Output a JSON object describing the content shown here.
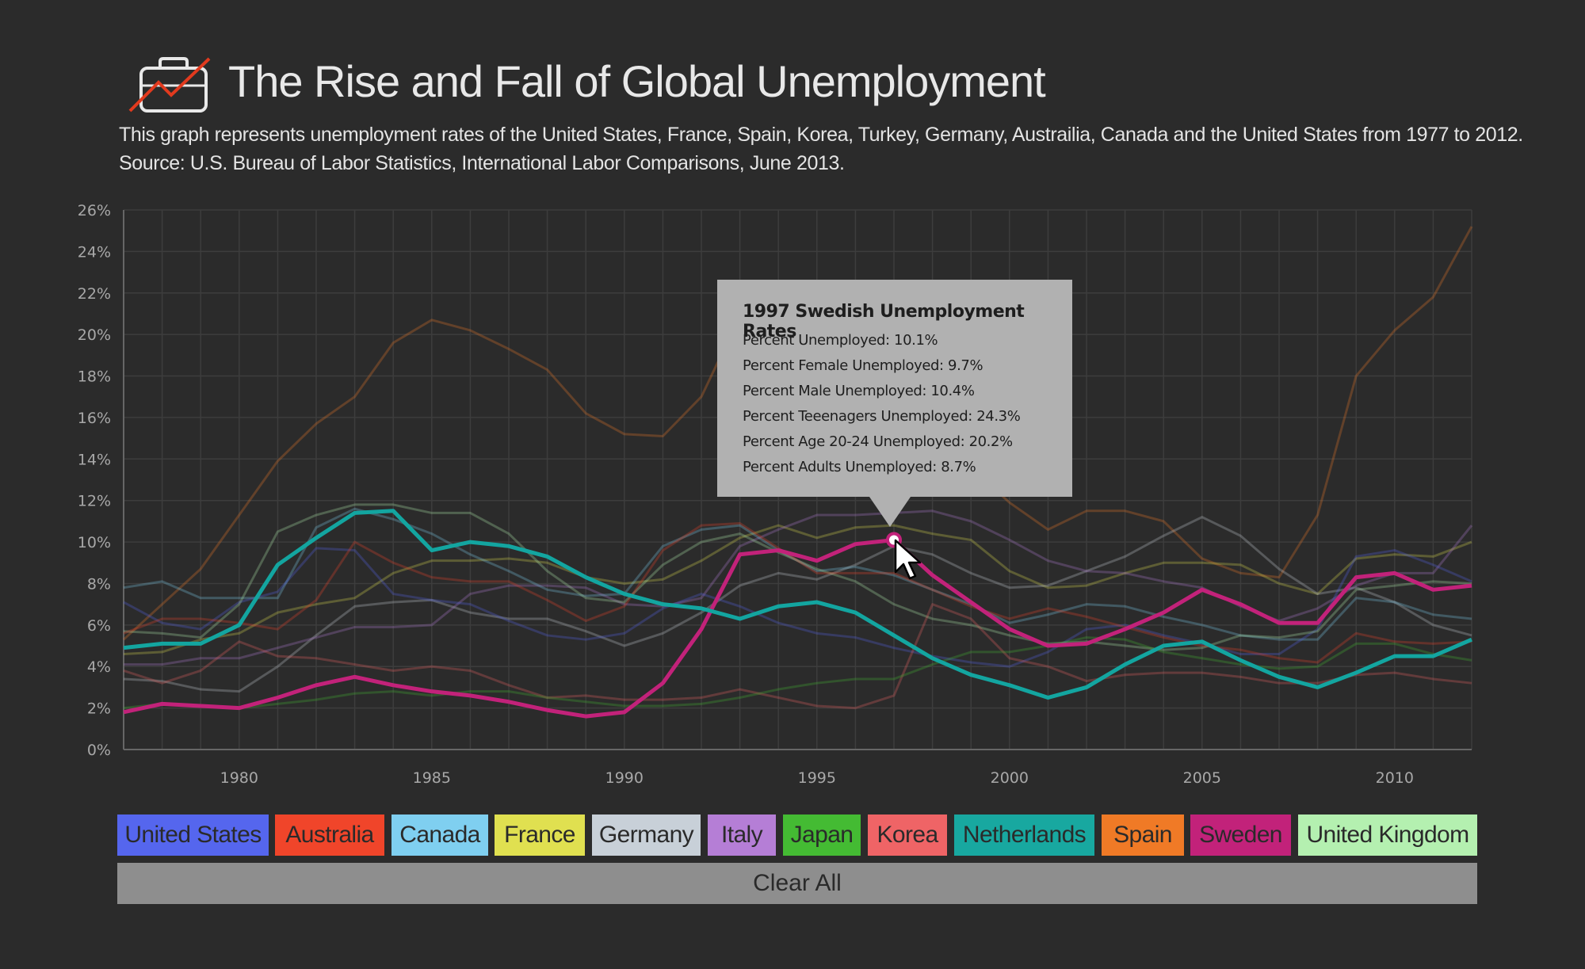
{
  "header": {
    "title": "The Rise and Fall of Global Unemployment",
    "subtitle_line1": "This graph represents unemployment rates of the United States, France, Spain, Korea, Turkey, Germany, Austrailia, Canada and the United States from 1977 to 2012.",
    "subtitle_line2": "Source: U.S. Bureau of Labor Statistics, International Labor Comparisons, June 2013.",
    "icon": "briefcase-chart-icon"
  },
  "tooltip": {
    "title": "1997 Swedish Unemployment Rates",
    "lines": [
      "Percent Unemployed: 10.1%",
      "Percent Female Unemployed: 9.7%",
      "Percent Male Unemployed: 10.4%",
      "Percent Teeenagers Unemployed: 24.3%",
      "Percent Age 20-24 Unemployed: 20.2%",
      "Percent Adults Unemployed: 8.7%"
    ]
  },
  "buttons": [
    {
      "label": "United States",
      "color": "#5566ee"
    },
    {
      "label": "Australia",
      "color": "#f0452a"
    },
    {
      "label": "Canada",
      "color": "#7fcff0"
    },
    {
      "label": "France",
      "color": "#e0e050"
    },
    {
      "label": "Germany",
      "color": "#c8d0d8"
    },
    {
      "label": "Italy",
      "color": "#b57ed6"
    },
    {
      "label": "Japan",
      "color": "#44bb33"
    },
    {
      "label": "Korea",
      "color": "#ef6466"
    },
    {
      "label": "Netherlands",
      "color": "#18a8a0"
    },
    {
      "label": "Spain",
      "color": "#f07a26"
    },
    {
      "label": "Sweden",
      "color": "#c2227a"
    },
    {
      "label": "United Kingdom",
      "color": "#b4f0b0"
    }
  ],
  "clear_label": "Clear All",
  "chart_data": {
    "type": "line",
    "title": "The Rise and Fall of Global Unemployment",
    "xlabel": "",
    "ylabel": "",
    "xlim": [
      1977,
      2012
    ],
    "ylim": [
      0,
      26
    ],
    "yticks": [
      "0%",
      "2%",
      "4%",
      "6%",
      "8%",
      "10%",
      "12%",
      "14%",
      "16%",
      "18%",
      "20%",
      "22%",
      "24%",
      "26%"
    ],
    "xticks": [
      "1980",
      "1985",
      "1990",
      "1995",
      "2000",
      "2005",
      "2010"
    ],
    "grid": true,
    "highlight_point": {
      "series": "Sweden",
      "x": 1997,
      "y": 10.1
    },
    "x": [
      1977,
      1978,
      1979,
      1980,
      1981,
      1982,
      1983,
      1984,
      1985,
      1986,
      1987,
      1988,
      1989,
      1990,
      1991,
      1992,
      1993,
      1994,
      1995,
      1996,
      1997,
      1998,
      1999,
      2000,
      2001,
      2002,
      2003,
      2004,
      2005,
      2006,
      2007,
      2008,
      2009,
      2010,
      2011,
      2012
    ],
    "series": [
      {
        "name": "Sweden",
        "color": "#c2227a",
        "active": true,
        "values": [
          1.8,
          2.2,
          2.1,
          2.0,
          2.5,
          3.1,
          3.5,
          3.1,
          2.8,
          2.6,
          2.3,
          1.9,
          1.6,
          1.8,
          3.2,
          5.8,
          9.4,
          9.6,
          9.1,
          9.9,
          10.1,
          8.4,
          7.1,
          5.8,
          5.0,
          5.1,
          5.8,
          6.6,
          7.7,
          7.0,
          6.1,
          6.1,
          8.3,
          8.5,
          7.7,
          7.9
        ]
      },
      {
        "name": "Netherlands",
        "color": "#13a5a0",
        "active": true,
        "values": [
          4.9,
          5.1,
          5.1,
          6.0,
          8.9,
          10.2,
          11.4,
          11.5,
          9.6,
          10.0,
          9.8,
          9.3,
          8.3,
          7.5,
          7.0,
          6.8,
          6.3,
          6.9,
          7.1,
          6.6,
          5.5,
          4.4,
          3.6,
          3.1,
          2.5,
          3.0,
          4.1,
          5.0,
          5.2,
          4.3,
          3.5,
          3.0,
          3.7,
          4.5,
          4.5,
          5.3
        ]
      },
      {
        "name": "Spain",
        "color": "#f07a26",
        "active": false,
        "values": [
          5.3,
          7.0,
          8.7,
          11.3,
          13.9,
          15.7,
          17.0,
          19.6,
          20.7,
          20.2,
          19.3,
          18.3,
          16.2,
          15.2,
          15.1,
          17.0,
          20.9,
          22.2,
          21.3,
          20.0,
          18.4,
          16.1,
          13.6,
          11.9,
          10.6,
          11.5,
          11.5,
          11.0,
          9.2,
          8.5,
          8.3,
          11.3,
          18.0,
          20.2,
          21.8,
          25.2
        ]
      },
      {
        "name": "France",
        "color": "#e0e050",
        "active": false,
        "values": [
          4.6,
          4.7,
          5.3,
          5.6,
          6.6,
          7.0,
          7.3,
          8.5,
          9.1,
          9.1,
          9.2,
          9.0,
          8.3,
          8.0,
          8.2,
          9.1,
          10.2,
          10.8,
          10.2,
          10.7,
          10.8,
          10.4,
          10.1,
          8.6,
          7.8,
          7.9,
          8.5,
          9.0,
          9.0,
          8.9,
          8.0,
          7.5,
          9.2,
          9.4,
          9.3,
          10.0
        ]
      },
      {
        "name": "Germany",
        "color": "#c8d0d8",
        "active": false,
        "values": [
          3.4,
          3.3,
          2.9,
          2.8,
          4.0,
          5.5,
          6.9,
          7.1,
          7.2,
          6.6,
          6.3,
          6.3,
          5.7,
          5.0,
          5.6,
          6.6,
          7.9,
          8.5,
          8.2,
          8.9,
          9.8,
          9.4,
          8.5,
          7.8,
          7.9,
          8.6,
          9.3,
          10.3,
          11.2,
          10.3,
          8.7,
          7.5,
          7.8,
          7.1,
          6.0,
          5.5
        ]
      },
      {
        "name": "Italy",
        "color": "#b57ed6",
        "active": false,
        "values": [
          4.1,
          4.1,
          4.4,
          4.4,
          4.9,
          5.4,
          5.9,
          5.9,
          6.0,
          7.5,
          7.9,
          7.9,
          7.8,
          7.0,
          6.9,
          7.3,
          9.8,
          10.6,
          11.3,
          11.3,
          11.4,
          11.5,
          11.0,
          10.1,
          9.1,
          8.6,
          8.5,
          8.1,
          7.8,
          6.9,
          6.2,
          6.8,
          7.9,
          8.5,
          8.5,
          10.8
        ]
      },
      {
        "name": "Canada",
        "color": "#7fcff0",
        "active": false,
        "values": [
          7.8,
          8.1,
          7.3,
          7.3,
          7.3,
          10.7,
          11.6,
          11.1,
          10.4,
          9.4,
          8.6,
          7.7,
          7.4,
          7.5,
          9.8,
          10.6,
          10.8,
          9.6,
          8.6,
          8.8,
          8.4,
          7.7,
          7.0,
          6.1,
          6.5,
          7.0,
          6.9,
          6.4,
          6.0,
          5.5,
          5.3,
          5.3,
          7.3,
          7.1,
          6.5,
          6.3
        ]
      },
      {
        "name": "United States",
        "color": "#5566ee",
        "active": false,
        "values": [
          7.1,
          6.1,
          5.8,
          7.1,
          7.6,
          9.7,
          9.6,
          7.5,
          7.2,
          7.0,
          6.2,
          5.5,
          5.3,
          5.6,
          6.8,
          7.5,
          6.9,
          6.1,
          5.6,
          5.4,
          4.9,
          4.5,
          4.2,
          4.0,
          4.7,
          5.8,
          6.0,
          5.5,
          5.1,
          4.6,
          4.6,
          5.8,
          9.3,
          9.6,
          8.9,
          8.1
        ]
      },
      {
        "name": "United Kingdom",
        "color": "#b4f0b0",
        "active": false,
        "values": [
          5.7,
          5.6,
          5.4,
          7.0,
          10.5,
          11.3,
          11.8,
          11.8,
          11.4,
          11.4,
          10.4,
          8.6,
          7.3,
          7.1,
          8.9,
          10.0,
          10.4,
          9.5,
          8.7,
          8.1,
          7.0,
          6.3,
          6.0,
          5.5,
          5.1,
          5.2,
          5.0,
          4.8,
          4.9,
          5.5,
          5.4,
          5.7,
          7.7,
          7.9,
          8.1,
          8.0
        ]
      },
      {
        "name": "Australia",
        "color": "#f0452a",
        "active": false,
        "values": [
          5.6,
          6.3,
          6.3,
          6.1,
          5.8,
          7.2,
          10.0,
          9.0,
          8.3,
          8.1,
          8.1,
          7.2,
          6.2,
          6.9,
          9.6,
          10.8,
          10.9,
          9.7,
          8.5,
          8.5,
          8.5,
          7.7,
          6.9,
          6.3,
          6.8,
          6.4,
          5.9,
          5.4,
          5.0,
          4.8,
          4.4,
          4.2,
          5.6,
          5.2,
          5.1,
          5.2
        ]
      },
      {
        "name": "Korea",
        "color": "#ef6466",
        "active": false,
        "values": [
          3.8,
          3.2,
          3.8,
          5.2,
          4.5,
          4.4,
          4.1,
          3.8,
          4.0,
          3.8,
          3.1,
          2.5,
          2.6,
          2.4,
          2.4,
          2.5,
          2.9,
          2.5,
          2.1,
          2.0,
          2.6,
          7.0,
          6.3,
          4.4,
          4.0,
          3.3,
          3.6,
          3.7,
          3.7,
          3.5,
          3.2,
          3.2,
          3.6,
          3.7,
          3.4,
          3.2
        ]
      },
      {
        "name": "Japan",
        "color": "#44bb33",
        "active": false,
        "values": [
          2.0,
          2.2,
          2.1,
          2.0,
          2.2,
          2.4,
          2.7,
          2.8,
          2.6,
          2.8,
          2.8,
          2.5,
          2.3,
          2.1,
          2.1,
          2.2,
          2.5,
          2.9,
          3.2,
          3.4,
          3.4,
          4.1,
          4.7,
          4.7,
          5.0,
          5.4,
          5.3,
          4.7,
          4.4,
          4.1,
          3.9,
          4.0,
          5.1,
          5.1,
          4.6,
          4.3
        ]
      }
    ]
  }
}
